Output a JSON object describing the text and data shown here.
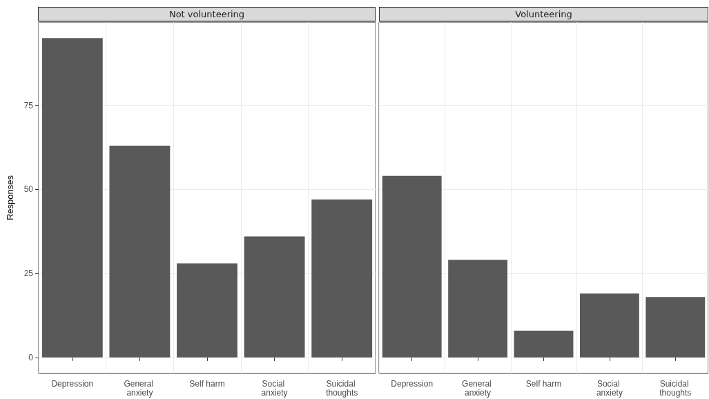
{
  "chart_data": [
    {
      "type": "bar",
      "title": "Not volunteering",
      "ylabel": "Responses",
      "categories": [
        "Depression",
        "General anxiety",
        "Self harm",
        "Social anxiety",
        "Suicidal thoughts"
      ],
      "values": [
        95,
        63,
        28,
        36,
        47
      ],
      "color": "#595959",
      "ylim": [
        -4.75,
        99.75
      ],
      "yticks": [
        0,
        25,
        50,
        75
      ],
      "grid": true
    },
    {
      "type": "bar",
      "title": "Volunteering",
      "categories": [
        "Depression",
        "General anxiety",
        "Self harm",
        "Social anxiety",
        "Suicidal thoughts"
      ],
      "values": [
        54,
        29,
        8,
        19,
        18
      ],
      "color": "#595959",
      "ylim": [
        -4.75,
        99.75
      ],
      "yticks": [
        0,
        25,
        50,
        75
      ],
      "grid": true,
      "tick_labels": "x"
    }
  ]
}
